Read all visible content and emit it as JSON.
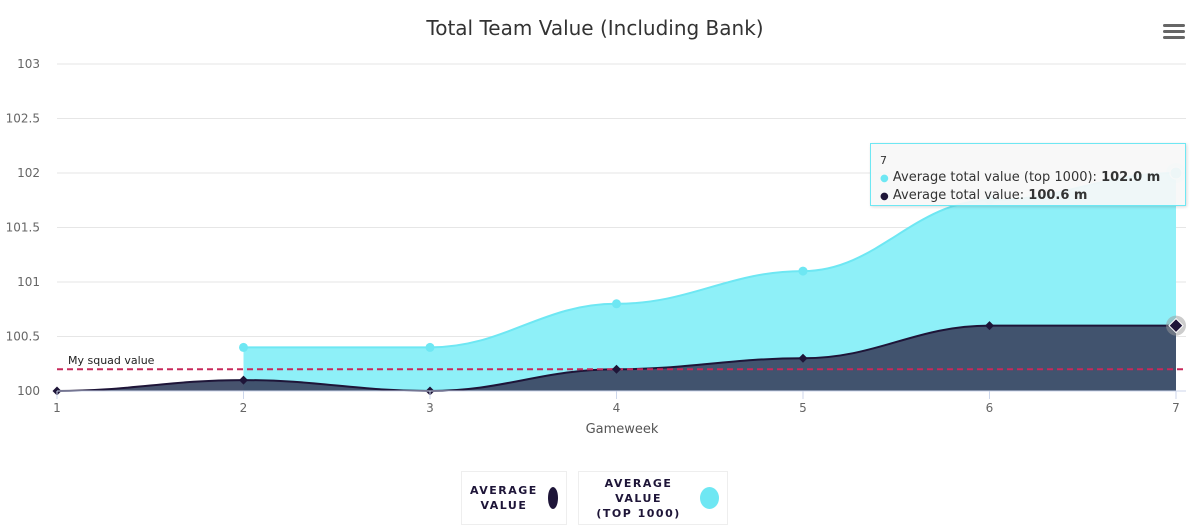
{
  "chart_data": {
    "type": "area",
    "title": "Total Team Value (Including Bank)",
    "xlabel": "Gameweek",
    "ylabel": "",
    "x": [
      1,
      2,
      3,
      4,
      5,
      6,
      7
    ],
    "x_ticks": [
      "1",
      "2",
      "3",
      "4",
      "5",
      "6",
      "7"
    ],
    "ylim": [
      100,
      103
    ],
    "y_ticks": [
      "100",
      "100.5",
      "101",
      "101.5",
      "102",
      "102.5",
      "103"
    ],
    "y_tick_values": [
      100,
      100.5,
      101,
      101.5,
      102,
      102.5,
      103
    ],
    "grid": true,
    "series": [
      {
        "name": "Average total value (top 1000)",
        "legend": "AVERAGE VALUE (TOP 1000)",
        "legend_lines": [
          "AVERAGE VALUE",
          "(TOP 1000)"
        ],
        "color": "#6ee7f3",
        "fill": "#8ef0f8",
        "values": [
          null,
          100.4,
          100.4,
          100.8,
          101.1,
          101.75,
          102.0
        ]
      },
      {
        "name": "Average total value",
        "legend": "AVERAGE VALUE",
        "legend_lines": [
          "AVERAGE",
          "VALUE"
        ],
        "color": "#1e1538",
        "fill": "#3d4a66",
        "values": [
          100.0,
          100.1,
          100.0,
          100.2,
          100.3,
          100.6,
          100.6
        ]
      }
    ],
    "plot_lines": [
      {
        "label": "My squad value",
        "value": 100.2,
        "color": "#c8285a",
        "style": "dashed"
      }
    ],
    "tooltip": {
      "x": "7",
      "rows": [
        {
          "label": "Average total value (top 1000): ",
          "value": "102.0 m",
          "color": "#6ee7f3"
        },
        {
          "label": "Average total value: ",
          "value": "100.6 m",
          "color": "#1e1538"
        }
      ]
    },
    "legend_position": "bottom"
  },
  "menu_icon": "hamburger-menu-icon"
}
